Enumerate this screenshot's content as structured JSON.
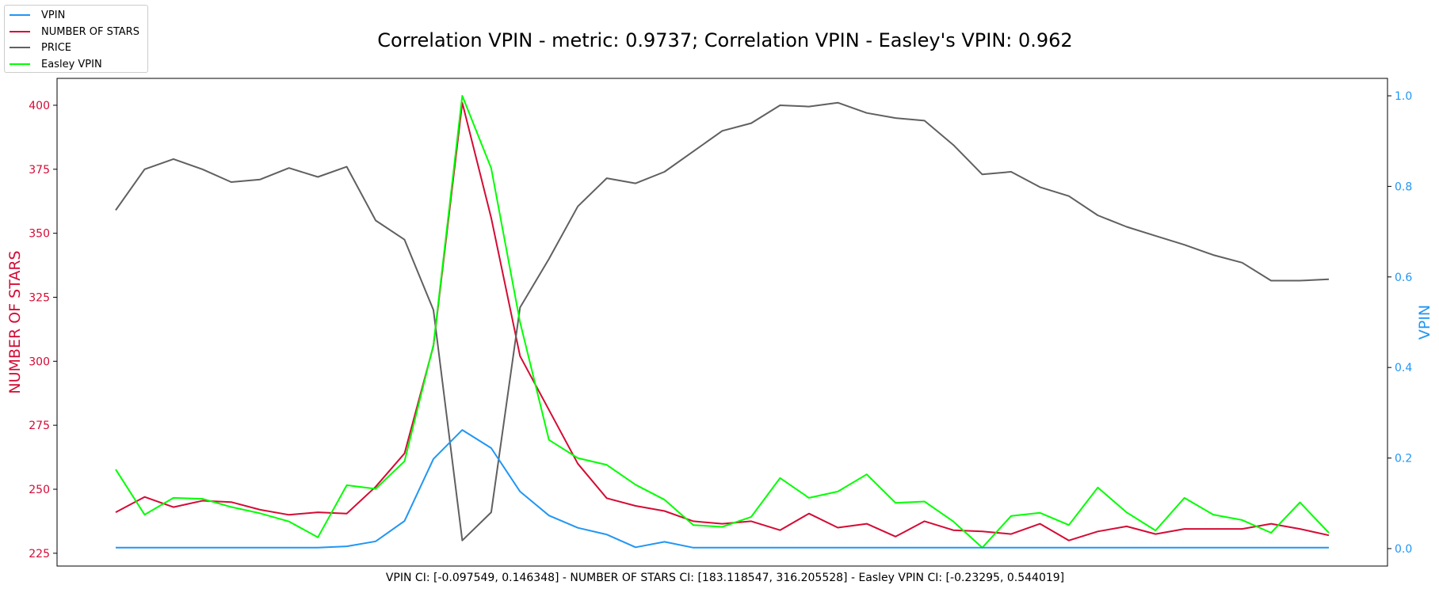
{
  "chart_data": {
    "type": "line",
    "title": "Correlation VPIN - metric: 0.9737; Correlation VPIN - Easley's VPIN: 0.962",
    "xlabel": "VPIN CI: [-0.097549, 0.146348] - NUMBER OF STARS CI: [183.118547, 316.205528] - Easley VPIN CI: [-0.23295, 0.544019]",
    "left_axis": {
      "label": "NUMBER OF STARS",
      "ylim": [
        220.0,
        410.5
      ],
      "ticks": [
        225,
        250,
        275,
        300,
        325,
        350,
        375,
        400
      ],
      "color": "#d40b35"
    },
    "right_axis": {
      "label": "VPIN",
      "ylim": [
        -0.0385,
        1.0385
      ],
      "ticks": [
        "0.0",
        "0.2",
        "0.4",
        "0.6",
        "0.8",
        "1.0"
      ],
      "color": "#2196f3"
    },
    "x": [
      0,
      1,
      2,
      3,
      4,
      5,
      6,
      7,
      8,
      9,
      10,
      11,
      12,
      13,
      14,
      15,
      16,
      17,
      18,
      19,
      20,
      21,
      22,
      23,
      24,
      25,
      26,
      27,
      28,
      29,
      30,
      31,
      32,
      33,
      34,
      35,
      36,
      37,
      38,
      39,
      40,
      41,
      42
    ],
    "grid": false,
    "legend_position": "upper-left",
    "series": [
      {
        "name": "VPIN",
        "axis": "right",
        "color": "#2196f3",
        "values": [
          0.002,
          0.002,
          0.002,
          0.002,
          0.002,
          0.002,
          0.002,
          0.002,
          0.005,
          0.016,
          0.061,
          0.198,
          0.262,
          0.222,
          0.126,
          0.073,
          0.046,
          0.031,
          0.003,
          0.015,
          0.002,
          0.002,
          0.002,
          0.002,
          0.002,
          0.002,
          0.002,
          0.002,
          0.002,
          0.002,
          0.002,
          0.002,
          0.002,
          0.002,
          0.002,
          0.002,
          0.002,
          0.002,
          0.002,
          0.002,
          0.002,
          0.002,
          0.002
        ]
      },
      {
        "name": "NUMBER OF STARS",
        "axis": "left",
        "color": "#d40b35",
        "values": [
          241,
          247,
          243,
          245.5,
          245,
          242,
          240,
          241,
          240.5,
          251,
          264,
          306,
          401,
          356,
          302,
          281,
          260,
          246.5,
          243.5,
          241.5,
          237.5,
          236.5,
          237.5,
          234,
          240.5,
          235,
          236.5,
          231.5,
          237.5,
          234,
          233.5,
          232.5,
          236.5,
          230,
          233.5,
          235.5,
          232.5,
          234.5,
          234.5,
          234.5,
          236.5,
          234.5,
          232
        ]
      },
      {
        "name": "PRICE",
        "axis": "left",
        "color": "#606060",
        "values": [
          359,
          375,
          379,
          375,
          370,
          371,
          375.5,
          372,
          376,
          355,
          347.5,
          320,
          230,
          241,
          321,
          340,
          360.5,
          371.5,
          369.5,
          374,
          382,
          390,
          393,
          400,
          399.5,
          401,
          397,
          395,
          394,
          384.5,
          373,
          374,
          368,
          364.5,
          357,
          352.5,
          349,
          345.5,
          341.5,
          338.5,
          331.5,
          331.5,
          332
        ]
      },
      {
        "name": "Easley VPIN",
        "axis": "right",
        "color": "#00ff00",
        "values": [
          0.175,
          0.075,
          0.112,
          0.11,
          0.092,
          0.078,
          0.06,
          0.025,
          0.14,
          0.132,
          0.193,
          0.45,
          1.0,
          0.84,
          0.5,
          0.24,
          0.2,
          0.185,
          0.141,
          0.108,
          0.052,
          0.048,
          0.07,
          0.156,
          0.112,
          0.126,
          0.164,
          0.101,
          0.104,
          0.06,
          0.002,
          0.072,
          0.079,
          0.052,
          0.135,
          0.08,
          0.04,
          0.112,
          0.075,
          0.063,
          0.035,
          0.102,
          0.035
        ]
      }
    ]
  }
}
